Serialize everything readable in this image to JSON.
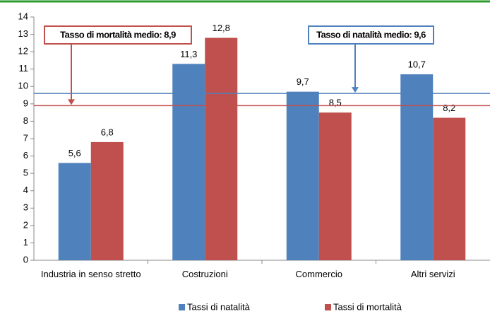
{
  "chart_data": {
    "type": "bar",
    "categories": [
      "Industria in senso stretto",
      "Costruzioni",
      "Commercio",
      "Altri servizi"
    ],
    "series": [
      {
        "name": "Tassi di natalità",
        "color": "#4f81bd",
        "values": [
          5.6,
          11.3,
          9.7,
          10.7
        ],
        "value_labels": [
          "5,6",
          "11,3",
          "9,7",
          "10,7"
        ]
      },
      {
        "name": "Tassi di mortalità",
        "color": "#c0504d",
        "values": [
          6.8,
          12.8,
          8.5,
          8.2
        ],
        "value_labels": [
          "6,8",
          "12,8",
          "8,5",
          "8,2"
        ]
      }
    ],
    "ylim": [
      0,
      14
    ],
    "yticks": [
      0,
      1,
      2,
      3,
      4,
      5,
      6,
      7,
      8,
      9,
      10,
      11,
      12,
      13,
      14
    ],
    "reference_lines": [
      {
        "value": 8.9,
        "color": "#c0504d",
        "label": "Tasso di mortalità medio: 8,9"
      },
      {
        "value": 9.6,
        "color": "#4f81bd",
        "label": "Tasso di natalità medio: 9,6"
      }
    ]
  }
}
